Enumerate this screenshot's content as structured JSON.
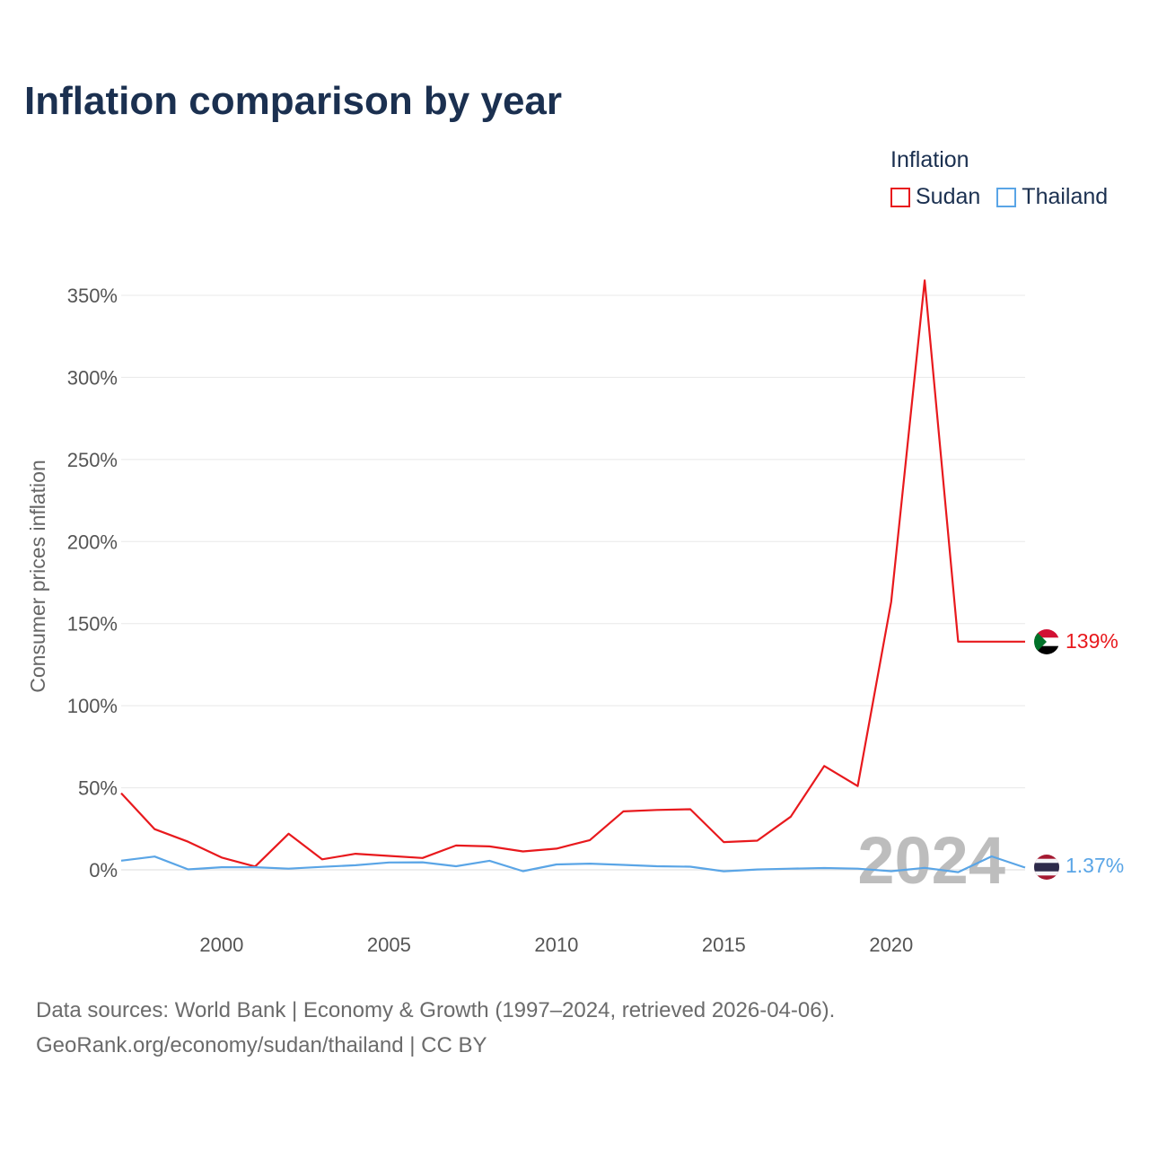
{
  "title": "Inflation comparison by year",
  "legend": {
    "title": "Inflation",
    "items": [
      {
        "label": "Sudan",
        "color": "#e8191d"
      },
      {
        "label": "Thailand",
        "color": "#5aa5e6"
      }
    ]
  },
  "chart_data": {
    "type": "line",
    "title": "Inflation comparison by year",
    "xlabel": "",
    "ylabel": "Consumer prices inflation",
    "xlim": [
      1997,
      2024
    ],
    "ylim": [
      -25,
      375
    ],
    "x_ticks": [
      2000,
      2005,
      2010,
      2015,
      2020
    ],
    "x_tick_labels": [
      "2000",
      "2005",
      "2010",
      "2015",
      "2020"
    ],
    "y_ticks": [
      0,
      50,
      100,
      150,
      200,
      250,
      300,
      350
    ],
    "y_tick_labels": [
      "0%",
      "50%",
      "100%",
      "150%",
      "200%",
      "250%",
      "300%",
      "350%"
    ],
    "grid": true,
    "legend_position": "top-right",
    "x": [
      1997,
      1998,
      1999,
      2000,
      2001,
      2002,
      2003,
      2004,
      2005,
      2006,
      2007,
      2008,
      2009,
      2010,
      2011,
      2012,
      2013,
      2014,
      2015,
      2016,
      2017,
      2018,
      2019,
      2020,
      2021,
      2022,
      2023,
      2024
    ],
    "series": [
      {
        "name": "Sudan",
        "color": "#e8191d",
        "values": [
          46.7,
          24.8,
          17.1,
          7.5,
          2.0,
          22.0,
          6.4,
          9.8,
          8.5,
          7.2,
          14.8,
          14.3,
          11.2,
          12.9,
          18.1,
          35.6,
          36.5,
          36.9,
          16.9,
          17.8,
          32.4,
          63.3,
          51.0,
          163.3,
          359.1,
          139.0,
          139.0,
          139.0
        ]
      },
      {
        "name": "Thailand",
        "color": "#5aa5e6",
        "values": [
          5.6,
          8.1,
          0.3,
          1.6,
          1.6,
          0.7,
          1.8,
          2.8,
          4.5,
          4.6,
          2.2,
          5.5,
          -0.8,
          3.3,
          3.8,
          3.0,
          2.2,
          1.9,
          -0.9,
          0.2,
          0.7,
          1.1,
          0.7,
          -0.8,
          1.2,
          -1.4,
          8.2,
          1.37
        ]
      }
    ],
    "end_labels": [
      {
        "series": "Sudan",
        "text": "139%",
        "value": 139
      },
      {
        "series": "Thailand",
        "text": "1.37%",
        "value": 1.37
      }
    ],
    "watermark": "2024"
  },
  "footer": {
    "line1": "Data sources: World Bank | Economy & Growth (1997–2024, retrieved 2026-04-06).",
    "line2": "GeoRank.org/economy/sudan/thailand | CC BY"
  }
}
